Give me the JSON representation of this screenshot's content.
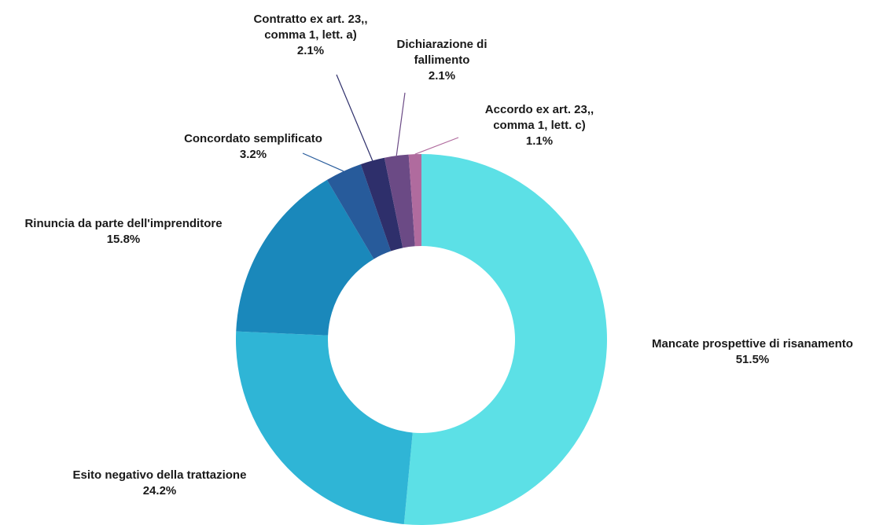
{
  "chart_data": {
    "type": "donut",
    "categories": [
      "Mancate prospettive di risanamento",
      "Esito negativo della trattazione",
      "Rinuncia da parte dell'imprenditore",
      "Concordato semplificato",
      "Contratto ex art. 23,, comma 1, lett. a)",
      "Dichiarazione di fallimento",
      "Accordo ex art. 23,, comma 1, lett. c)"
    ],
    "values": [
      51.5,
      24.2,
      15.8,
      3.2,
      2.1,
      2.1,
      1.1
    ],
    "value_labels": [
      "51.5%",
      "24.2%",
      "15.8%",
      "3.2%",
      "2.1%",
      "2.1%",
      "1.1%"
    ],
    "colors": [
      "#5ce0e6",
      "#2fb5d6",
      "#1a88bb",
      "#275b9b",
      "#2e2f6b",
      "#6b4a85",
      "#b06b9e"
    ]
  }
}
